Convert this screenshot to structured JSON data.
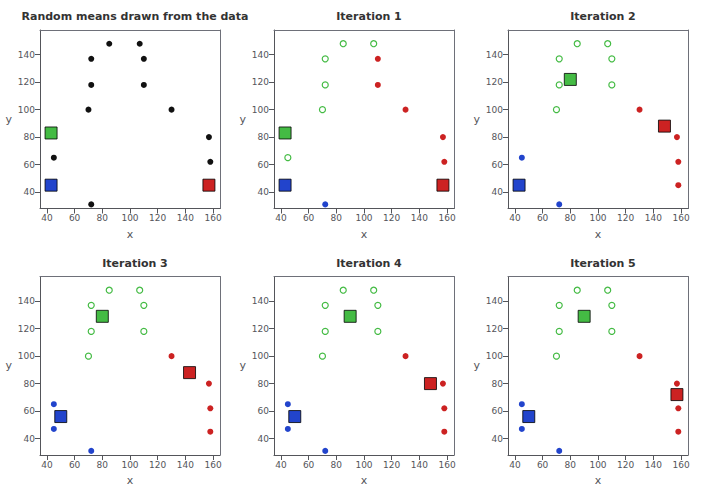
{
  "chart_data": [
    {
      "type": "scatter",
      "title": "Random means drawn from the data",
      "xlabel": "x",
      "ylabel": "y",
      "xlim": [
        35,
        165
      ],
      "ylim": [
        28,
        158
      ],
      "xticks": [
        40,
        60,
        80,
        100,
        120,
        140,
        160
      ],
      "yticks": [
        40,
        60,
        80,
        100,
        120,
        140
      ],
      "grid": false,
      "series": [
        {
          "color": "#111111",
          "marker": "circle",
          "values": [
            [
              45,
              47
            ],
            [
              45,
              65
            ],
            [
              70,
              100
            ],
            [
              72,
              118
            ],
            [
              72,
              137
            ],
            [
              85,
              148
            ],
            [
              107,
              148
            ],
            [
              110,
              118
            ],
            [
              110,
              137
            ],
            [
              130,
              100
            ],
            [
              157,
              80
            ],
            [
              158,
              62
            ],
            [
              158,
              45
            ],
            [
              72,
              31
            ]
          ]
        },
        {
          "color": "#44BB44",
          "marker": "square",
          "values": [
            [
              43,
              83
            ]
          ]
        },
        {
          "color": "#2244CC",
          "marker": "square",
          "values": [
            [
              43,
              45
            ]
          ]
        },
        {
          "color": "#CC2222",
          "marker": "square",
          "values": [
            [
              157,
              45
            ]
          ]
        }
      ]
    },
    {
      "type": "scatter",
      "title": "Iteration 1",
      "xlabel": "x",
      "ylabel": "y",
      "xlim": [
        35,
        165
      ],
      "ylim": [
        28,
        158
      ],
      "xticks": [
        40,
        60,
        80,
        100,
        120,
        140,
        160
      ],
      "yticks": [
        40,
        60,
        80,
        100,
        120,
        140
      ],
      "grid": false,
      "series": [
        {
          "color": "#44BB44",
          "marker": "open_circle",
          "values": [
            [
              45,
              65
            ],
            [
              70,
              100
            ],
            [
              72,
              118
            ],
            [
              72,
              137
            ],
            [
              85,
              148
            ],
            [
              107,
              148
            ]
          ]
        },
        {
          "color": "#2244CC",
          "marker": "circle",
          "values": [
            [
              45,
              47
            ],
            [
              72,
              31
            ]
          ]
        },
        {
          "color": "#CC2222",
          "marker": "circle",
          "values": [
            [
              110,
              118
            ],
            [
              110,
              137
            ],
            [
              130,
              100
            ],
            [
              157,
              80
            ],
            [
              158,
              62
            ],
            [
              158,
              45
            ]
          ]
        },
        {
          "color": "#44BB44",
          "marker": "square",
          "values": [
            [
              43,
              83
            ]
          ]
        },
        {
          "color": "#2244CC",
          "marker": "square",
          "values": [
            [
              43,
              45
            ]
          ]
        },
        {
          "color": "#CC2222",
          "marker": "square",
          "values": [
            [
              157,
              45
            ]
          ]
        }
      ]
    },
    {
      "type": "scatter",
      "title": "Iteration 2",
      "xlabel": "x",
      "ylabel": "y",
      "xlim": [
        35,
        165
      ],
      "ylim": [
        28,
        158
      ],
      "xticks": [
        40,
        60,
        80,
        100,
        120,
        140,
        160
      ],
      "yticks": [
        40,
        60,
        80,
        100,
        120,
        140
      ],
      "grid": false,
      "series": [
        {
          "color": "#44BB44",
          "marker": "open_circle",
          "values": [
            [
              72,
              118
            ],
            [
              72,
              137
            ],
            [
              85,
              148
            ],
            [
              107,
              148
            ],
            [
              70,
              100
            ],
            [
              110,
              118
            ],
            [
              110,
              137
            ]
          ]
        },
        {
          "color": "#2244CC",
          "marker": "circle",
          "values": [
            [
              45,
              65
            ],
            [
              45,
              47
            ],
            [
              72,
              31
            ]
          ]
        },
        {
          "color": "#CC2222",
          "marker": "circle",
          "values": [
            [
              130,
              100
            ],
            [
              157,
              80
            ],
            [
              158,
              62
            ],
            [
              158,
              45
            ]
          ]
        },
        {
          "color": "#44BB44",
          "marker": "square",
          "values": [
            [
              80,
              122
            ]
          ]
        },
        {
          "color": "#2244CC",
          "marker": "square",
          "values": [
            [
              43,
              45
            ]
          ]
        },
        {
          "color": "#CC2222",
          "marker": "square",
          "values": [
            [
              148,
              88
            ]
          ]
        }
      ]
    },
    {
      "type": "scatter",
      "title": "Iteration 3",
      "xlabel": "x",
      "ylabel": "y",
      "xlim": [
        35,
        165
      ],
      "ylim": [
        28,
        158
      ],
      "xticks": [
        40,
        60,
        80,
        100,
        120,
        140,
        160
      ],
      "yticks": [
        40,
        60,
        80,
        100,
        120,
        140
      ],
      "grid": false,
      "series": [
        {
          "color": "#44BB44",
          "marker": "open_circle",
          "values": [
            [
              72,
              118
            ],
            [
              72,
              137
            ],
            [
              85,
              148
            ],
            [
              107,
              148
            ],
            [
              70,
              100
            ],
            [
              110,
              118
            ],
            [
              110,
              137
            ]
          ]
        },
        {
          "color": "#2244CC",
          "marker": "circle",
          "values": [
            [
              45,
              65
            ],
            [
              45,
              47
            ],
            [
              72,
              31
            ]
          ]
        },
        {
          "color": "#CC2222",
          "marker": "circle",
          "values": [
            [
              130,
              100
            ],
            [
              157,
              80
            ],
            [
              158,
              62
            ],
            [
              158,
              45
            ]
          ]
        },
        {
          "color": "#44BB44",
          "marker": "square",
          "values": [
            [
              80,
              129
            ]
          ]
        },
        {
          "color": "#2244CC",
          "marker": "square",
          "values": [
            [
              50,
              56
            ]
          ]
        },
        {
          "color": "#CC2222",
          "marker": "square",
          "values": [
            [
              143,
              88
            ]
          ]
        }
      ]
    },
    {
      "type": "scatter",
      "title": "Iteration 4",
      "xlabel": "x",
      "ylabel": "y",
      "xlim": [
        35,
        165
      ],
      "ylim": [
        28,
        158
      ],
      "xticks": [
        40,
        60,
        80,
        100,
        120,
        140,
        160
      ],
      "yticks": [
        40,
        60,
        80,
        100,
        120,
        140
      ],
      "grid": false,
      "series": [
        {
          "color": "#44BB44",
          "marker": "open_circle",
          "values": [
            [
              72,
              118
            ],
            [
              72,
              137
            ],
            [
              85,
              148
            ],
            [
              107,
              148
            ],
            [
              70,
              100
            ],
            [
              110,
              118
            ],
            [
              110,
              137
            ]
          ]
        },
        {
          "color": "#2244CC",
          "marker": "circle",
          "values": [
            [
              45,
              65
            ],
            [
              45,
              47
            ],
            [
              72,
              31
            ]
          ]
        },
        {
          "color": "#CC2222",
          "marker": "circle",
          "values": [
            [
              130,
              100
            ],
            [
              157,
              80
            ],
            [
              158,
              62
            ],
            [
              158,
              45
            ]
          ]
        },
        {
          "color": "#44BB44",
          "marker": "square",
          "values": [
            [
              90,
              129
            ]
          ]
        },
        {
          "color": "#2244CC",
          "marker": "square",
          "values": [
            [
              50,
              56
            ]
          ]
        },
        {
          "color": "#CC2222",
          "marker": "square",
          "values": [
            [
              148,
              80
            ]
          ]
        }
      ]
    },
    {
      "type": "scatter",
      "title": "Iteration 5",
      "xlabel": "x",
      "ylabel": "y",
      "xlim": [
        35,
        165
      ],
      "ylim": [
        28,
        158
      ],
      "xticks": [
        40,
        60,
        80,
        100,
        120,
        140,
        160
      ],
      "yticks": [
        40,
        60,
        80,
        100,
        120,
        140
      ],
      "grid": false,
      "series": [
        {
          "color": "#44BB44",
          "marker": "open_circle",
          "values": [
            [
              72,
              118
            ],
            [
              72,
              137
            ],
            [
              85,
              148
            ],
            [
              107,
              148
            ],
            [
              70,
              100
            ],
            [
              110,
              118
            ],
            [
              110,
              137
            ]
          ]
        },
        {
          "color": "#2244CC",
          "marker": "circle",
          "values": [
            [
              45,
              65
            ],
            [
              45,
              47
            ],
            [
              72,
              31
            ]
          ]
        },
        {
          "color": "#CC2222",
          "marker": "circle",
          "values": [
            [
              130,
              100
            ],
            [
              157,
              80
            ],
            [
              158,
              62
            ],
            [
              158,
              45
            ]
          ]
        },
        {
          "color": "#44BB44",
          "marker": "square",
          "values": [
            [
              90,
              129
            ]
          ]
        },
        {
          "color": "#2244CC",
          "marker": "square",
          "values": [
            [
              50,
              56
            ]
          ]
        },
        {
          "color": "#CC2222",
          "marker": "square",
          "values": [
            [
              157,
              72
            ]
          ]
        }
      ]
    }
  ]
}
